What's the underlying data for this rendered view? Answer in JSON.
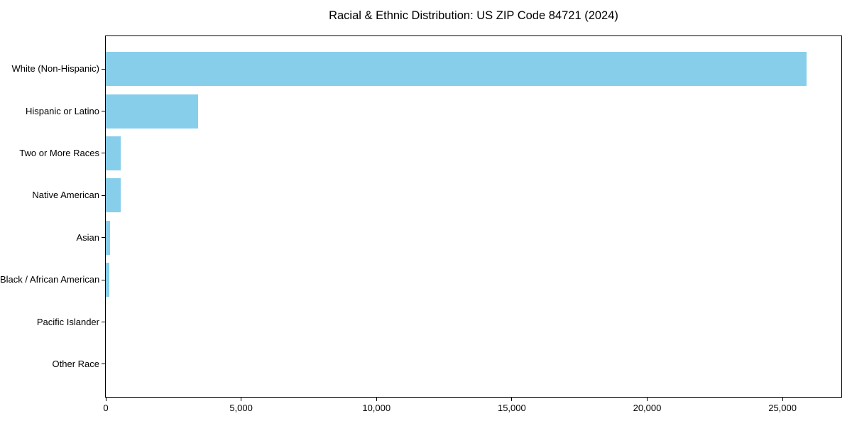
{
  "chart_data": {
    "type": "bar",
    "orientation": "horizontal",
    "title": "Racial & Ethnic Distribution: US ZIP Code 84721 (2024)",
    "categories": [
      "White (Non-Hispanic)",
      "Hispanic or Latino",
      "Two or More Races",
      "Native American",
      "Asian",
      "Black / African American",
      "Pacific Islander",
      "Other Race"
    ],
    "values": [
      25880,
      3410,
      560,
      550,
      150,
      120,
      10,
      5
    ],
    "xlabel": "",
    "ylabel": "",
    "xlim": [
      0,
      27174
    ],
    "xticks": [
      0,
      5000,
      10000,
      15000,
      20000,
      25000
    ],
    "xtick_labels": [
      "0",
      "5,000",
      "10,000",
      "15,000",
      "20,000",
      "25,000"
    ],
    "grid": false,
    "legend": false,
    "bar_color": "#87CEEB",
    "spine_color": "#000000",
    "background_color": "#FFFFFF",
    "text_color": "#000000"
  }
}
